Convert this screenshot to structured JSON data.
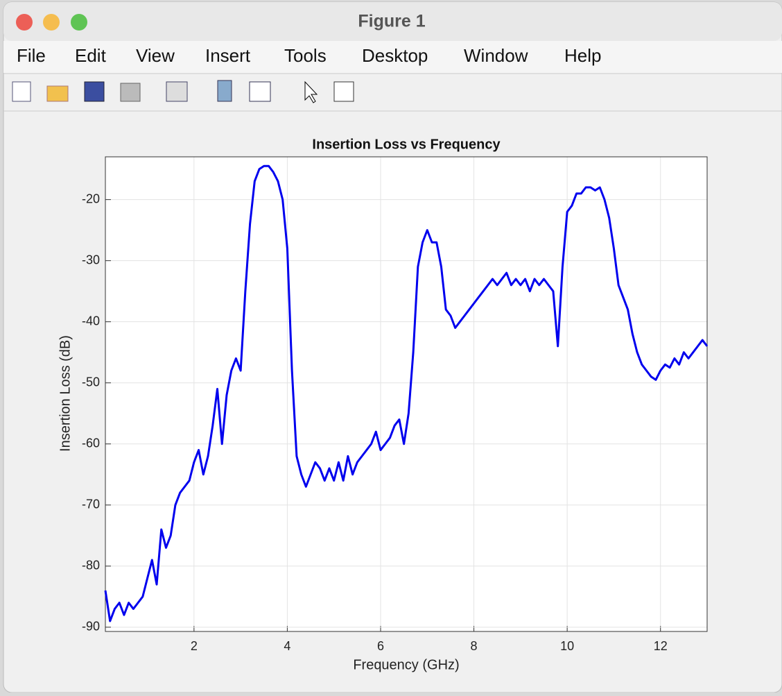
{
  "window": {
    "title": "Figure 1",
    "menu": [
      "File",
      "Edit",
      "View",
      "Insert",
      "Tools",
      "Desktop",
      "Window",
      "Help"
    ]
  },
  "chart_data": {
    "type": "line",
    "title": "Insertion Loss vs Frequency",
    "x_label": "Frequency (GHz)",
    "y_label": "Insertion Loss (dB)",
    "color": "#0000ee",
    "grid": true,
    "xlim": [
      0.1,
      13
    ],
    "ylim": [
      -90.7,
      -13
    ],
    "xticks": [
      2,
      4,
      6,
      8,
      10,
      12
    ],
    "yticks": [
      -90,
      -80,
      -70,
      -60,
      -50,
      -40,
      -30,
      -20
    ],
    "x": [
      0.1,
      0.2,
      0.3,
      0.4,
      0.5,
      0.6,
      0.7,
      0.8,
      0.9,
      1.0,
      1.1,
      1.2,
      1.3,
      1.4,
      1.5,
      1.6,
      1.7,
      1.8,
      1.9,
      2.0,
      2.1,
      2.2,
      2.3,
      2.4,
      2.5,
      2.6,
      2.7,
      2.8,
      2.9,
      3.0,
      3.1,
      3.2,
      3.3,
      3.4,
      3.5,
      3.6,
      3.7,
      3.8,
      3.9,
      4.0,
      4.1,
      4.2,
      4.3,
      4.4,
      4.5,
      4.6,
      4.7,
      4.8,
      4.9,
      5.0,
      5.1,
      5.2,
      5.3,
      5.4,
      5.5,
      5.6,
      5.7,
      5.8,
      5.9,
      6.0,
      6.1,
      6.2,
      6.3,
      6.4,
      6.5,
      6.6,
      6.7,
      6.8,
      6.9,
      7.0,
      7.1,
      7.2,
      7.3,
      7.4,
      7.5,
      7.6,
      7.7,
      7.8,
      7.9,
      8.0,
      8.1,
      8.2,
      8.3,
      8.4,
      8.5,
      8.6,
      8.7,
      8.8,
      8.9,
      9.0,
      9.1,
      9.2,
      9.3,
      9.4,
      9.5,
      9.6,
      9.7,
      9.8,
      9.9,
      10.0,
      10.1,
      10.2,
      10.3,
      10.4,
      10.5,
      10.6,
      10.7,
      10.8,
      10.9,
      11.0,
      11.1,
      11.2,
      11.3,
      11.4,
      11.5,
      11.6,
      11.7,
      11.8,
      11.9,
      12.0,
      12.1,
      12.2,
      12.3,
      12.4,
      12.5,
      12.6,
      12.7,
      12.8,
      12.9,
      13.0
    ],
    "values": [
      -84,
      -89,
      -87,
      -86,
      -88,
      -86,
      -87,
      -86,
      -85,
      -82,
      -79,
      -83,
      -74,
      -77,
      -75,
      -70,
      -68,
      -67,
      -66,
      -63,
      -61,
      -65,
      -62,
      -57,
      -51,
      -60,
      -52,
      -48,
      -46,
      -48,
      -35,
      -24,
      -17,
      -15,
      -14.5,
      -14.5,
      -15.5,
      -17,
      -20,
      -28,
      -48,
      -62,
      -65,
      -67,
      -65,
      -63,
      -64,
      -66,
      -64,
      -66,
      -63,
      -66,
      -62,
      -65,
      -63,
      -62,
      -61,
      -60,
      -58,
      -61,
      -60,
      -59,
      -57,
      -56,
      -60,
      -55,
      -45,
      -31,
      -27,
      -25,
      -27,
      -27,
      -31,
      -38,
      -39,
      -41,
      -40,
      -39,
      -38,
      -37,
      -36,
      -35,
      -34,
      -33,
      -34,
      -33,
      -32,
      -34,
      -33,
      -34,
      -33,
      -35,
      -33,
      -34,
      -33,
      -34,
      -35,
      -44,
      -31,
      -22,
      -21,
      -19,
      -19,
      -18,
      -18,
      -18.5,
      -18,
      -20,
      -23,
      -28,
      -34,
      -36,
      -38,
      -42,
      -45,
      -47,
      -48,
      -49,
      -49.5,
      -48,
      -47,
      -47.5,
      -46,
      -47,
      -45,
      -46,
      -45,
      -44,
      -43,
      -44
    ]
  }
}
